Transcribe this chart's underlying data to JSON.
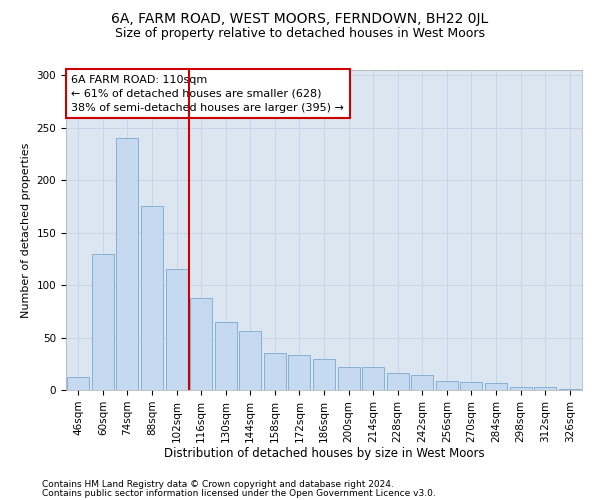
{
  "title1": "6A, FARM ROAD, WEST MOORS, FERNDOWN, BH22 0JL",
  "title2": "Size of property relative to detached houses in West Moors",
  "xlabel": "Distribution of detached houses by size in West Moors",
  "ylabel": "Number of detached properties",
  "categories": [
    "46sqm",
    "60sqm",
    "74sqm",
    "88sqm",
    "102sqm",
    "116sqm",
    "130sqm",
    "144sqm",
    "158sqm",
    "172sqm",
    "186sqm",
    "200sqm",
    "214sqm",
    "228sqm",
    "242sqm",
    "256sqm",
    "270sqm",
    "284sqm",
    "298sqm",
    "312sqm",
    "326sqm"
  ],
  "values": [
    12,
    130,
    240,
    175,
    115,
    88,
    65,
    56,
    35,
    33,
    30,
    22,
    22,
    16,
    14,
    9,
    8,
    7,
    3,
    3,
    1
  ],
  "bar_color": "#c5d9f0",
  "bar_edge_color": "#7aaad0",
  "annotation_line1": "6A FARM ROAD: 110sqm",
  "annotation_line2": "← 61% of detached houses are smaller (628)",
  "annotation_line3": "38% of semi-detached houses are larger (395) →",
  "annotation_box_color": "#ffffff",
  "annotation_box_edge": "#cc0000",
  "vline_color": "#cc0000",
  "vline_x_index": 4,
  "ylim": [
    0,
    305
  ],
  "yticks": [
    0,
    50,
    100,
    150,
    200,
    250,
    300
  ],
  "grid_color": "#c8d4e3",
  "background_color": "#dce6f1",
  "footnote1": "Contains HM Land Registry data © Crown copyright and database right 2024.",
  "footnote2": "Contains public sector information licensed under the Open Government Licence v3.0.",
  "title1_fontsize": 10,
  "title2_fontsize": 9,
  "xlabel_fontsize": 8.5,
  "ylabel_fontsize": 8,
  "tick_fontsize": 7.5,
  "annotation_fontsize": 8,
  "footnote_fontsize": 6.5
}
